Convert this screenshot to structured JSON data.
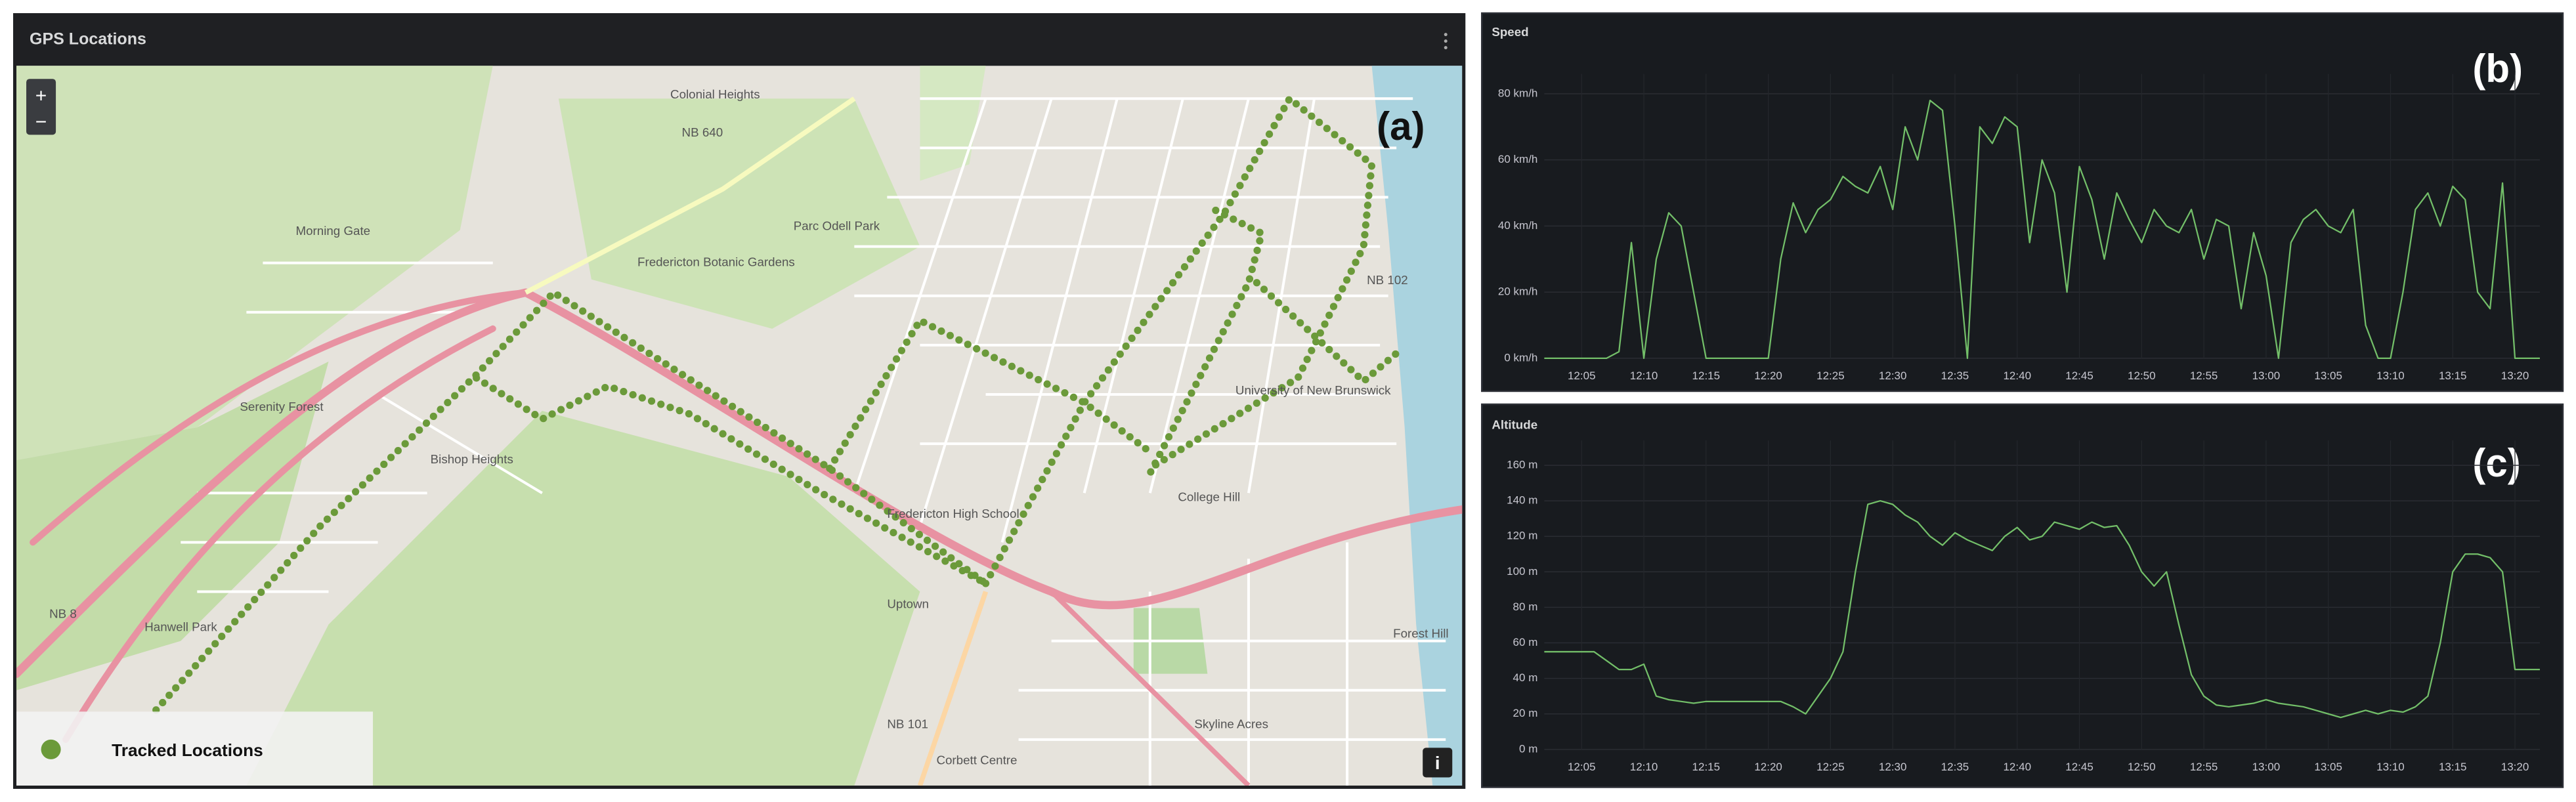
{
  "map": {
    "title": "GPS Locations",
    "panel_label": "(a)",
    "legend": "Tracked Locations",
    "zoom_in": "+",
    "zoom_out": "−",
    "info": "i",
    "place_labels": [
      "Colonial Heights",
      "Morning Gate",
      "Parc Odell Park",
      "Fredericton Botanic Gardens",
      "Serenity Forest",
      "Bishop Heights",
      "Hanwell Park",
      "Fredericton High School",
      "University of New Brunswick",
      "College Hill",
      "Skyline Acres",
      "Uptown",
      "Forest Hill",
      "NB 640",
      "NB 8",
      "NB 102",
      "NB 101",
      "Corbett Centre"
    ]
  },
  "chart_data": [
    {
      "type": "line",
      "title": "Speed",
      "panel_label": "(b)",
      "color": "#73bf69",
      "grid": true,
      "x": [
        "12:02",
        "12:03",
        "12:04",
        "12:05",
        "12:06",
        "12:07",
        "12:08",
        "12:09",
        "12:10",
        "12:11",
        "12:12",
        "12:13",
        "12:14",
        "12:15",
        "12:16",
        "12:17",
        "12:18",
        "12:19",
        "12:20",
        "12:21",
        "12:22",
        "12:23",
        "12:24",
        "12:25",
        "12:26",
        "12:27",
        "12:28",
        "12:29",
        "12:30",
        "12:31",
        "12:32",
        "12:33",
        "12:34",
        "12:35",
        "12:36",
        "12:37",
        "12:38",
        "12:39",
        "12:40",
        "12:41",
        "12:42",
        "12:43",
        "12:44",
        "12:45",
        "12:46",
        "12:47",
        "12:48",
        "12:49",
        "12:50",
        "12:51",
        "12:52",
        "12:53",
        "12:54",
        "12:55",
        "12:56",
        "12:57",
        "12:58",
        "12:59",
        "13:00",
        "13:01",
        "13:02",
        "13:03",
        "13:04",
        "13:05",
        "13:06",
        "13:07",
        "13:08",
        "13:09",
        "13:10",
        "13:11",
        "13:12",
        "13:13",
        "13:14",
        "13:15",
        "13:16",
        "13:17",
        "13:18",
        "13:19",
        "13:20",
        "13:21",
        "13:22"
      ],
      "values": [
        0,
        0,
        0,
        0,
        0,
        0,
        2,
        35,
        0,
        30,
        44,
        40,
        20,
        0,
        0,
        0,
        0,
        0,
        0,
        30,
        47,
        38,
        45,
        48,
        55,
        52,
        50,
        58,
        45,
        70,
        60,
        78,
        75,
        40,
        0,
        70,
        65,
        73,
        70,
        35,
        60,
        50,
        20,
        58,
        48,
        30,
        50,
        42,
        35,
        45,
        40,
        38,
        45,
        30,
        42,
        40,
        15,
        38,
        25,
        0,
        35,
        42,
        45,
        40,
        38,
        45,
        10,
        0,
        0,
        20,
        45,
        50,
        40,
        52,
        48,
        20,
        15,
        53,
        0,
        0,
        0
      ],
      "xlim": [
        "12:02",
        "13:22"
      ],
      "xticks": [
        "12:05",
        "12:10",
        "12:15",
        "12:20",
        "12:25",
        "12:30",
        "12:35",
        "12:40",
        "12:45",
        "12:50",
        "12:55",
        "13:00",
        "13:05",
        "13:10",
        "13:15",
        "13:20"
      ],
      "ylim": [
        0,
        86
      ],
      "yticks": [
        {
          "value": 0,
          "label": "0 km/h"
        },
        {
          "value": 20,
          "label": "20 km/h"
        },
        {
          "value": 40,
          "label": "40 km/h"
        },
        {
          "value": 60,
          "label": "60 km/h"
        },
        {
          "value": 80,
          "label": "80 km/h"
        }
      ]
    },
    {
      "type": "line",
      "title": "Altitude",
      "panel_label": "(c)",
      "color": "#73bf69",
      "grid": true,
      "x": [
        "12:02",
        "12:03",
        "12:04",
        "12:05",
        "12:06",
        "12:07",
        "12:08",
        "12:09",
        "12:10",
        "12:11",
        "12:12",
        "12:13",
        "12:14",
        "12:15",
        "12:16",
        "12:17",
        "12:18",
        "12:19",
        "12:20",
        "12:21",
        "12:22",
        "12:23",
        "12:24",
        "12:25",
        "12:26",
        "12:27",
        "12:28",
        "12:29",
        "12:30",
        "12:31",
        "12:32",
        "12:33",
        "12:34",
        "12:35",
        "12:36",
        "12:37",
        "12:38",
        "12:39",
        "12:40",
        "12:41",
        "12:42",
        "12:43",
        "12:44",
        "12:45",
        "12:46",
        "12:47",
        "12:48",
        "12:49",
        "12:50",
        "12:51",
        "12:52",
        "12:53",
        "12:54",
        "12:55",
        "12:56",
        "12:57",
        "12:58",
        "12:59",
        "13:00",
        "13:01",
        "13:02",
        "13:03",
        "13:04",
        "13:05",
        "13:06",
        "13:07",
        "13:08",
        "13:09",
        "13:10",
        "13:11",
        "13:12",
        "13:13",
        "13:14",
        "13:15",
        "13:16",
        "13:17",
        "13:18",
        "13:19",
        "13:20",
        "13:21",
        "13:22"
      ],
      "values": [
        55,
        55,
        55,
        55,
        55,
        50,
        45,
        45,
        48,
        30,
        28,
        27,
        26,
        27,
        27,
        27,
        27,
        27,
        27,
        27,
        24,
        20,
        30,
        40,
        55,
        100,
        138,
        140,
        138,
        132,
        128,
        120,
        115,
        122,
        118,
        115,
        112,
        120,
        125,
        118,
        120,
        128,
        126,
        124,
        128,
        125,
        126,
        115,
        100,
        92,
        100,
        70,
        42,
        30,
        25,
        24,
        25,
        26,
        28,
        26,
        25,
        24,
        22,
        20,
        18,
        20,
        22,
        20,
        22,
        21,
        24,
        30,
        60,
        100,
        110,
        110,
        108,
        100,
        45,
        45,
        45
      ],
      "xlim": [
        "12:02",
        "13:22"
      ],
      "xticks": [
        "12:05",
        "12:10",
        "12:15",
        "12:20",
        "12:25",
        "12:30",
        "12:35",
        "12:40",
        "12:45",
        "12:50",
        "12:55",
        "13:00",
        "13:05",
        "13:10",
        "13:15",
        "13:20"
      ],
      "ylim": [
        0,
        174
      ],
      "yticks": [
        {
          "value": 0,
          "label": "0 m"
        },
        {
          "value": 20,
          "label": "20 m"
        },
        {
          "value": 40,
          "label": "40 m"
        },
        {
          "value": 60,
          "label": "60 m"
        },
        {
          "value": 80,
          "label": "80 m"
        },
        {
          "value": 100,
          "label": "100 m"
        },
        {
          "value": 120,
          "label": "120 m"
        },
        {
          "value": 140,
          "label": "140 m"
        },
        {
          "value": 160,
          "label": "160 m"
        }
      ]
    }
  ]
}
